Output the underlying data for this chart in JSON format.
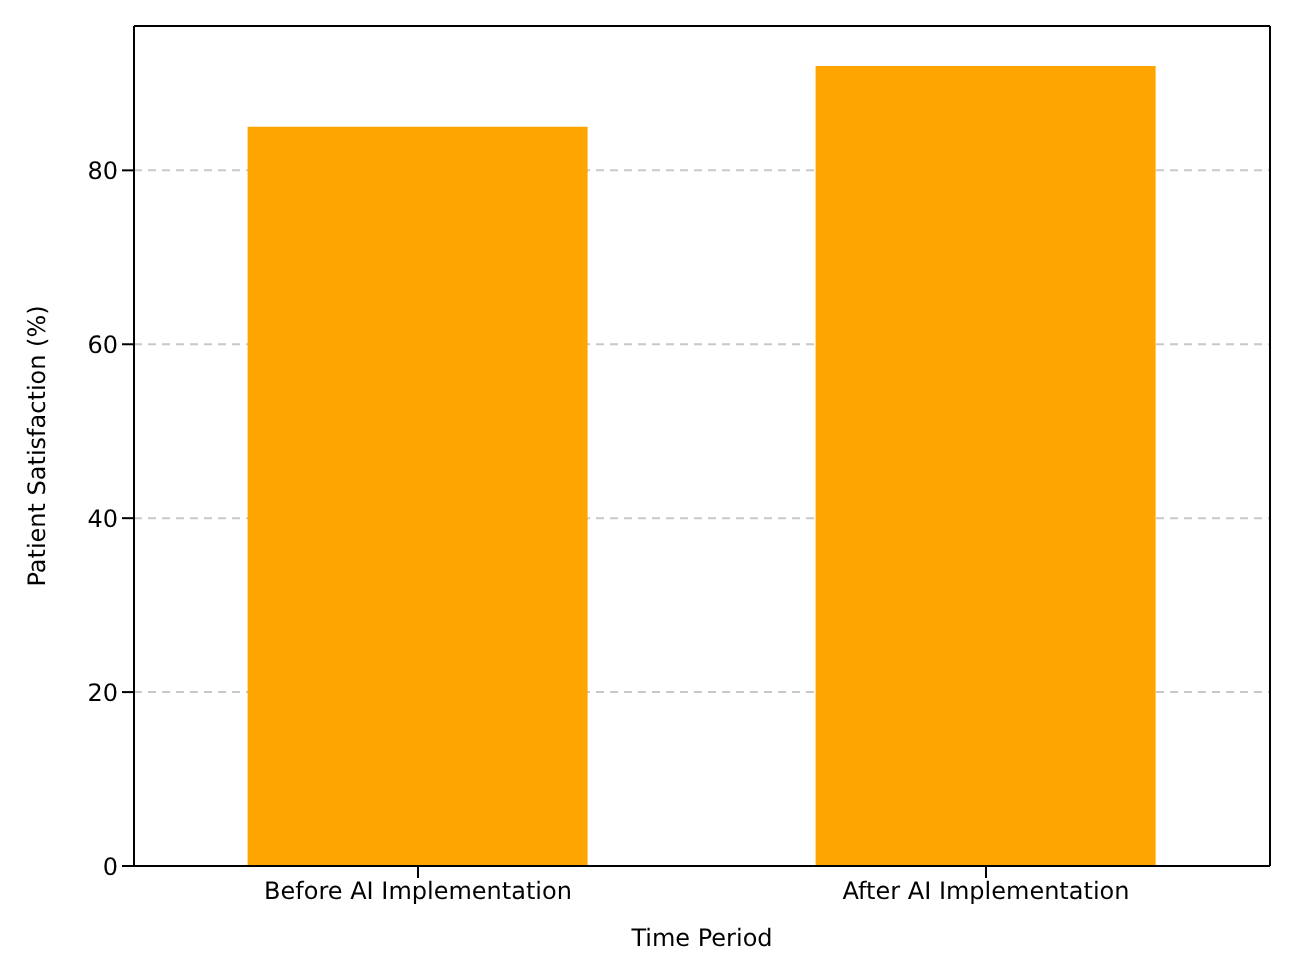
{
  "chart_data": {
    "type": "bar",
    "xlabel": "Time Period",
    "ylabel": "Patient Satisfaction (%)",
    "categories": [
      "Before AI Implementation",
      "After AI Implementation"
    ],
    "values": [
      85,
      92
    ],
    "color": "#ffa500",
    "ylim": [
      0,
      96.6
    ],
    "yticks": [
      0,
      20,
      40,
      60,
      80
    ],
    "grid": "y"
  }
}
